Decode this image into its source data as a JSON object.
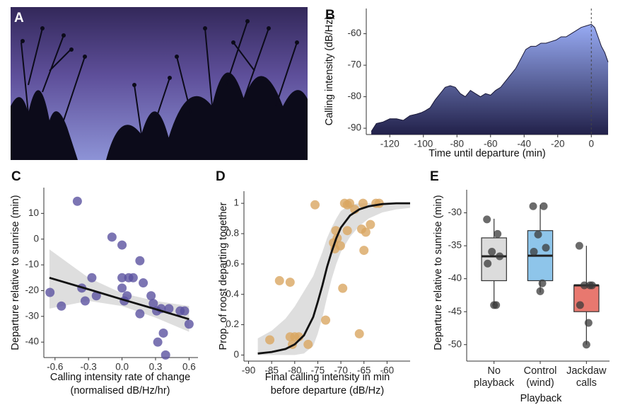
{
  "image_panel": {
    "label": "A"
  },
  "chart_data": [
    {
      "type": "area",
      "label": "B",
      "x_label": "Time until departure (min)",
      "y_label": "Calling intensity (dB/Hz)",
      "x": [
        -131,
        -128,
        -124,
        -120,
        -116,
        -112,
        -108,
        -104,
        -101,
        -99,
        -96,
        -93,
        -90,
        -87,
        -84,
        -81,
        -78,
        -75,
        -72,
        -69,
        -66,
        -63,
        -60,
        -57,
        -54,
        -51,
        -48,
        -45,
        -42,
        -39,
        -36,
        -33,
        -30,
        -27,
        -24,
        -21,
        -18,
        -15,
        -12,
        -9,
        -6,
        -3,
        0,
        2,
        4,
        6,
        8,
        10
      ],
      "values": [
        -91,
        -88.5,
        -88,
        -87,
        -87,
        -87.5,
        -86,
        -85.5,
        -85,
        -84.5,
        -83.5,
        -81,
        -79,
        -77,
        -76.5,
        -77,
        -79,
        -80,
        -78,
        -79,
        -80,
        -79,
        -79.5,
        -78,
        -77,
        -75,
        -73,
        -71,
        -68,
        -65,
        -64,
        -64,
        -63,
        -63,
        -62.5,
        -62,
        -61,
        -61,
        -60,
        -59,
        -58,
        -57.5,
        -57,
        -58,
        -61,
        -64,
        -66,
        -69
      ],
      "color_top": "#98abf4",
      "color_bottom": "#22214a",
      "xlim": [
        -134,
        10
      ],
      "ylim": [
        -92,
        -52
      ],
      "xticks": [
        -120,
        -100,
        -80,
        -60,
        -40,
        -20,
        0
      ],
      "yticks": [
        -90,
        -80,
        -70,
        -60
      ],
      "reference_x": 0
    },
    {
      "type": "scatter",
      "label": "C",
      "x_label": [
        "Calling intensity rate of change",
        "(normalised dB/Hz/hr)"
      ],
      "y_label": "Departure relative to sunrise (min)",
      "x": [
        -0.645,
        -0.543,
        -0.4,
        -0.36,
        -0.33,
        -0.27,
        -0.23,
        -0.09,
        0.0,
        0.0,
        0.0,
        0.02,
        0.045,
        0.06,
        0.1,
        0.16,
        0.16,
        0.19,
        0.26,
        0.28,
        0.31,
        0.32,
        0.35,
        0.37,
        0.39,
        0.42,
        0.52,
        0.56,
        0.6
      ],
      "values": [
        -20.7,
        -26,
        14.7,
        -19,
        -24,
        -15,
        -22,
        0.8,
        -2.3,
        -15,
        -19,
        -24,
        -22,
        -15,
        -15,
        -29,
        -8.4,
        -17,
        -22,
        -25,
        -27.9,
        -40,
        -27,
        -36.5,
        -45,
        -27,
        -27.9,
        -27.9,
        -33
      ],
      "color": "#5b53a0",
      "fit": {
        "x": [
          -0.65,
          -0.3,
          0,
          0.3,
          0.6
        ],
        "y": [
          -15,
          -19.5,
          -23.4,
          -27.2,
          -31.1
        ],
        "lower": [
          -27,
          -24,
          -26,
          -30.5,
          -36
        ],
        "upper": [
          -4,
          -15,
          -21,
          -24,
          -26
        ]
      },
      "xlim": [
        -0.7,
        0.68
      ],
      "ylim": [
        -46,
        20
      ],
      "xticks": [
        -0.6,
        -0.3,
        {
          "value": 0,
          "label": "0.0"
        },
        0.3,
        0.6
      ],
      "yticks": [
        10,
        0,
        -10,
        -20,
        -30,
        -40
      ]
    },
    {
      "type": "scatter",
      "label": "D",
      "x_label": [
        "Final calling intensity in min",
        "before departure (dB/Hz)"
      ],
      "y_label": "Prop. of roost departing together",
      "x": [
        -85.4,
        -83.3,
        -81.0,
        -81.0,
        -80.0,
        -80.5,
        -79.1,
        -77.1,
        -75.6,
        -73.3,
        -71.6,
        -71.3,
        -71.1,
        -70.8,
        -70.1,
        -69.6,
        -69.2,
        -68.6,
        -68.6,
        -68.1,
        -67.0,
        -66.0,
        -65.5,
        -65.0,
        -64.6,
        -63.6,
        -62.4,
        -61.7,
        -65.2
      ],
      "values": [
        0.1,
        0.49,
        0.48,
        0.12,
        0.12,
        0.07,
        0.12,
        0.07,
        0.99,
        0.23,
        0.74,
        0.7,
        0.82,
        0.77,
        0.72,
        0.44,
        1.0,
        0.99,
        0.82,
        1.0,
        0.96,
        0.14,
        0.83,
        0.69,
        0.81,
        0.86,
        1.0,
        1.0,
        1.0
      ],
      "color": "#d9a662",
      "fit": {
        "x": [
          -88,
          -85,
          -82,
          -80,
          -78,
          -76,
          -75,
          -74,
          -73,
          -72,
          -71,
          -70,
          -68,
          -66,
          -64,
          -61,
          -58,
          -55
        ],
        "y": [
          0.01,
          0.02,
          0.04,
          0.07,
          0.13,
          0.25,
          0.35,
          0.46,
          0.58,
          0.68,
          0.77,
          0.84,
          0.92,
          0.96,
          0.98,
          0.995,
          1.0,
          1.0
        ],
        "lower": [
          0,
          0,
          0,
          0,
          0.01,
          0.06,
          0.14,
          0.25,
          0.38,
          0.5,
          0.6,
          0.68,
          0.78,
          0.85,
          0.9,
          0.94,
          0.96,
          0.97
        ],
        "upper": [
          0.11,
          0.16,
          0.24,
          0.32,
          0.42,
          0.52,
          0.6,
          0.68,
          0.77,
          0.84,
          0.9,
          0.95,
          0.99,
          1,
          1,
          1,
          1,
          1
        ]
      },
      "xlim": [
        -91,
        -55
      ],
      "ylim": [
        -0.04,
        1.08
      ],
      "xticks": [
        -90,
        -85,
        -80,
        -75,
        -70,
        -65,
        -60
      ],
      "yticks": [
        0,
        0.2,
        0.4,
        0.6,
        0.8,
        1
      ]
    },
    {
      "type": "box",
      "label": "E",
      "x_label": "Playback",
      "y_label": "Departure relative to sunrise (min)",
      "categories": [
        "No playback",
        "Control (wind)",
        "Jackdaw calls"
      ],
      "colors": [
        "#dcdcdc",
        "#8ec5ea",
        "#e8786f"
      ],
      "boxes": [
        {
          "whisker_low": -44,
          "q1": -40.3,
          "median": -36.6,
          "q3": -33.8,
          "whisker_high": -30.9
        },
        {
          "whisker_low": -42.1,
          "q1": -40.3,
          "median": -36.5,
          "q3": -32.7,
          "whisker_high": -28.8
        },
        {
          "whisker_low": -50,
          "q1": -45,
          "median": -41,
          "q3": -41,
          "whisker_high": -35
        }
      ],
      "points": [
        [
          -31,
          -33.2,
          -35.9,
          -36.6,
          -37.7,
          -44,
          -44
        ],
        [
          -29,
          -29,
          -33.3,
          -35.3,
          -35.9,
          -40.7,
          -41.9
        ],
        [
          -35,
          -41,
          -41,
          -41,
          -44,
          -46.7,
          -50
        ]
      ],
      "ylim": [
        -52.5,
        -26.5
      ],
      "yticks": [
        -30,
        -35,
        -40,
        -45,
        -50
      ]
    }
  ]
}
